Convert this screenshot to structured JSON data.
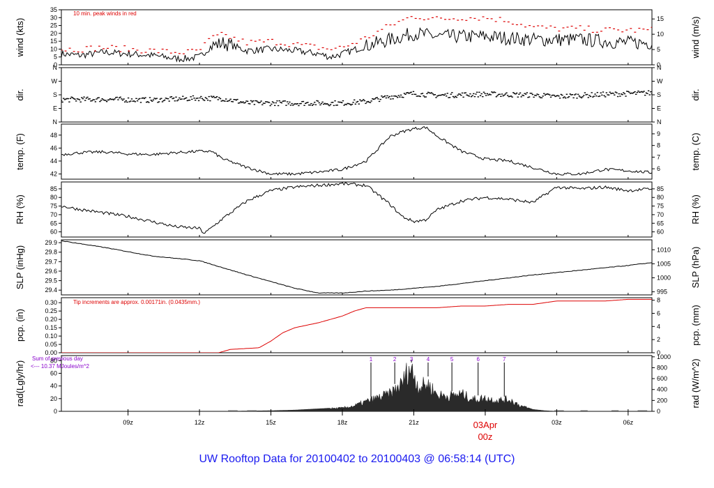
{
  "footer": {
    "prefix": "UW Rooftop Data for",
    "start": "20100402",
    "to": "to",
    "end": "20100403",
    "at": "@",
    "time": "06:58:14",
    "tz": "(UTC)"
  },
  "colors": {
    "axis": "#000000",
    "red": "#dd0000",
    "purple": "#8800cc",
    "blue": "#1a1af0",
    "radfill": "#2a2a2a"
  },
  "time_axis": {
    "range_hours": [
      6.2,
      31.0
    ],
    "ticks": [
      {
        "h": 9,
        "label": "09z"
      },
      {
        "h": 12,
        "label": "12z"
      },
      {
        "h": 15,
        "label": "15z"
      },
      {
        "h": 18,
        "label": "18z"
      },
      {
        "h": 21,
        "label": "21z"
      },
      {
        "h": 24,
        "label": ""
      },
      {
        "h": 27,
        "label": "03z"
      },
      {
        "h": 30,
        "label": "06z"
      }
    ],
    "date_marker": {
      "h": 24,
      "date": "03Apr",
      "time": "00z"
    }
  },
  "chart_data": [
    {
      "id": "wind",
      "type": "line",
      "ylabel_left": "wind (kts)",
      "ylabel_right": "wind (m/s)",
      "ylim": [
        0,
        35
      ],
      "left_ticks": [
        0,
        5,
        10,
        15,
        20,
        25,
        30,
        35
      ],
      "right_ylim": [
        0,
        18.0
      ],
      "right_ticks": [
        0,
        5,
        10,
        15
      ],
      "annotation": "10 min. peak winds in red",
      "series": [
        {
          "name": "wind speed",
          "color": "#000000",
          "x": [
            6.2,
            7,
            8,
            9,
            10,
            11,
            11.5,
            12,
            12.5,
            13,
            14,
            15,
            16,
            17,
            17.5,
            18,
            19,
            20,
            21,
            22,
            23,
            24,
            25,
            26,
            27,
            28,
            29,
            30,
            31
          ],
          "y": [
            7,
            6,
            8,
            7,
            6,
            4,
            4,
            5,
            12,
            14,
            9,
            10,
            9,
            7,
            5,
            7,
            12,
            16,
            20,
            18,
            18,
            18,
            17,
            16,
            16,
            16,
            15,
            14,
            14
          ]
        },
        {
          "name": "10 min peak",
          "color": "#dd0000",
          "x": [
            6.2,
            7,
            8,
            9,
            10,
            11,
            11.5,
            12,
            12.5,
            13,
            14,
            15,
            16,
            17,
            17.5,
            18,
            19,
            20,
            21,
            22,
            23,
            24,
            25,
            26,
            27,
            28,
            29,
            30,
            31
          ],
          "y": [
            10,
            10,
            11,
            10,
            9,
            8,
            8,
            9,
            17,
            19,
            14,
            15,
            13,
            11,
            10,
            11,
            17,
            25,
            31,
            29,
            30,
            30,
            28,
            24,
            23,
            23,
            22,
            22,
            22
          ]
        }
      ]
    },
    {
      "id": "dir",
      "type": "scatter",
      "ylabel_left": "dir.",
      "ylabel_right": "dir.",
      "ylim": [
        0,
        360
      ],
      "left_ticks": [
        {
          "v": 0,
          "label": "N"
        },
        {
          "v": 90,
          "label": "E"
        },
        {
          "v": 180,
          "label": "S"
        },
        {
          "v": 270,
          "label": "W"
        },
        {
          "v": 360,
          "label": "N"
        }
      ],
      "series": [
        {
          "name": "wind direction",
          "color": "#000000",
          "x": [
            6.2,
            8,
            10,
            12,
            13,
            14,
            16,
            18,
            19,
            20,
            21,
            22,
            24,
            26,
            27,
            28,
            30,
            31
          ],
          "y": [
            148,
            150,
            145,
            158,
            155,
            125,
            125,
            125,
            135,
            168,
            188,
            176,
            184,
            178,
            168,
            176,
            188,
            192
          ]
        }
      ]
    },
    {
      "id": "temp",
      "type": "line",
      "ylabel_left": "temp. (F)",
      "ylabel_right": "temp. (C)",
      "ylim": [
        41.2,
        49.7
      ],
      "left_ticks": [
        42,
        44,
        46,
        48
      ],
      "right_ticks": [
        6,
        7,
        8,
        9
      ],
      "series": [
        {
          "name": "temperature",
          "color": "#000000",
          "x": [
            6.2,
            7,
            8,
            9,
            10,
            11,
            12,
            12.5,
            13,
            14,
            15,
            16,
            17,
            18,
            19,
            20,
            20.5,
            21,
            21.5,
            22,
            23,
            24,
            25,
            26,
            27,
            28,
            29,
            30,
            31
          ],
          "y": [
            45,
            45.3,
            45.4,
            45.1,
            45,
            45.3,
            45.5,
            45.5,
            44.3,
            43,
            42,
            42,
            42.3,
            42.7,
            44,
            47.8,
            48.5,
            49,
            49.2,
            47.8,
            45.5,
            44.3,
            44,
            43,
            42,
            42,
            42.7,
            42.5,
            42.2
          ]
        }
      ]
    },
    {
      "id": "rh",
      "type": "line",
      "ylabel_left": "RH (%)",
      "ylabel_right": "RH (%)",
      "ylim": [
        57,
        89
      ],
      "left_ticks": [
        60,
        65,
        70,
        75,
        80,
        85
      ],
      "right_ticks": [
        60,
        65,
        70,
        75,
        80,
        85
      ],
      "series": [
        {
          "name": "relative humidity",
          "color": "#000000",
          "x": [
            6.2,
            7,
            8,
            9,
            10,
            11,
            12,
            12.2,
            13,
            14,
            15,
            16,
            17,
            18,
            19,
            20,
            20.5,
            21,
            21.5,
            22,
            23,
            24,
            25,
            26,
            27,
            28,
            29,
            30,
            31
          ],
          "y": [
            75,
            73,
            71,
            69,
            66,
            63,
            62,
            59,
            68,
            78,
            84,
            86,
            87,
            88,
            87,
            76,
            69,
            66,
            67,
            73,
            78,
            80,
            79,
            77,
            86,
            85,
            86,
            84,
            85
          ]
        }
      ]
    },
    {
      "id": "slp",
      "type": "line",
      "ylabel_left": "SLP (inHg)",
      "ylabel_right": "SLP (hPa)",
      "ylim": [
        29.35,
        29.93
      ],
      "left_ticks": [
        29.4,
        29.5,
        29.6,
        29.7,
        29.8,
        29.9
      ],
      "right_ticks": [
        995,
        1000,
        1005,
        1010
      ],
      "series": [
        {
          "name": "sea level pressure",
          "color": "#000000",
          "x": [
            6.2,
            8,
            10,
            12,
            14,
            16,
            17,
            18,
            19,
            20,
            22,
            24,
            26,
            28,
            30,
            31
          ],
          "y": [
            29.92,
            29.85,
            29.76,
            29.71,
            29.56,
            29.42,
            29.37,
            29.37,
            29.39,
            29.4,
            29.44,
            29.5,
            29.56,
            29.61,
            29.66,
            29.69
          ]
        }
      ]
    },
    {
      "id": "pcp",
      "type": "line",
      "ylabel_left": "pcp. (in)",
      "ylabel_right": "pcp. (mm)",
      "ylim": [
        0,
        0.33
      ],
      "left_ticks": [
        0.0,
        0.05,
        0.1,
        0.15,
        0.2,
        0.25,
        0.3
      ],
      "left_tick_labels": [
        "0.00",
        "0.05",
        "0.10",
        "0.15",
        "0.20",
        "0.25",
        "0.30"
      ],
      "right_ticks": [
        0,
        2,
        4,
        6,
        8
      ],
      "annotation": "Tip increments are approx. 0.00171in. (0.0435mm.)",
      "series": [
        {
          "name": "accumulated precipitation",
          "color": "#dd0000",
          "x": [
            6.2,
            12,
            12.8,
            13.3,
            14.5,
            15,
            15.5,
            16,
            17,
            18,
            18.5,
            19,
            20,
            21,
            22,
            23,
            24,
            25,
            26,
            27,
            28,
            29,
            30,
            31
          ],
          "y": [
            0,
            0,
            0,
            0.02,
            0.03,
            0.07,
            0.12,
            0.15,
            0.18,
            0.22,
            0.25,
            0.27,
            0.27,
            0.27,
            0.27,
            0.28,
            0.28,
            0.29,
            0.29,
            0.31,
            0.31,
            0.31,
            0.32,
            0.32
          ]
        }
      ]
    },
    {
      "id": "rad",
      "type": "area",
      "ylabel_left": "rad(Lgly/hr)",
      "ylabel_right": "rad (W/m^2)",
      "ylim": [
        0,
        88
      ],
      "left_ticks": [
        0,
        20,
        40,
        60,
        80
      ],
      "right_ticks": [
        0,
        200,
        400,
        600,
        800,
        1000
      ],
      "annotation_lines": [
        "Sum of previous day",
        "<--- 10.37 MJoules/m^2"
      ],
      "markers": [
        {
          "h": 19.2,
          "label": "1"
        },
        {
          "h": 20.2,
          "label": "2"
        },
        {
          "h": 20.9,
          "label": "3"
        },
        {
          "h": 21.6,
          "label": "4"
        },
        {
          "h": 22.6,
          "label": "5"
        },
        {
          "h": 23.7,
          "label": "6"
        },
        {
          "h": 24.8,
          "label": "7"
        }
      ],
      "series": [
        {
          "name": "solar radiation",
          "color": "#2a2a2a",
          "x": [
            6.2,
            13,
            14,
            15,
            16,
            17,
            17.5,
            18,
            18.5,
            19,
            19.5,
            20,
            20.5,
            20.8,
            21,
            21.2,
            21.6,
            22,
            22.5,
            23,
            23.5,
            24,
            24.5,
            25,
            25.5,
            26,
            26.5,
            27,
            31
          ],
          "y": [
            0,
            0,
            0.5,
            1,
            2,
            4,
            5,
            6,
            10,
            18,
            25,
            32,
            50,
            80,
            68,
            45,
            50,
            30,
            28,
            32,
            22,
            24,
            20,
            22,
            10,
            3,
            1,
            0,
            0
          ]
        }
      ]
    }
  ]
}
